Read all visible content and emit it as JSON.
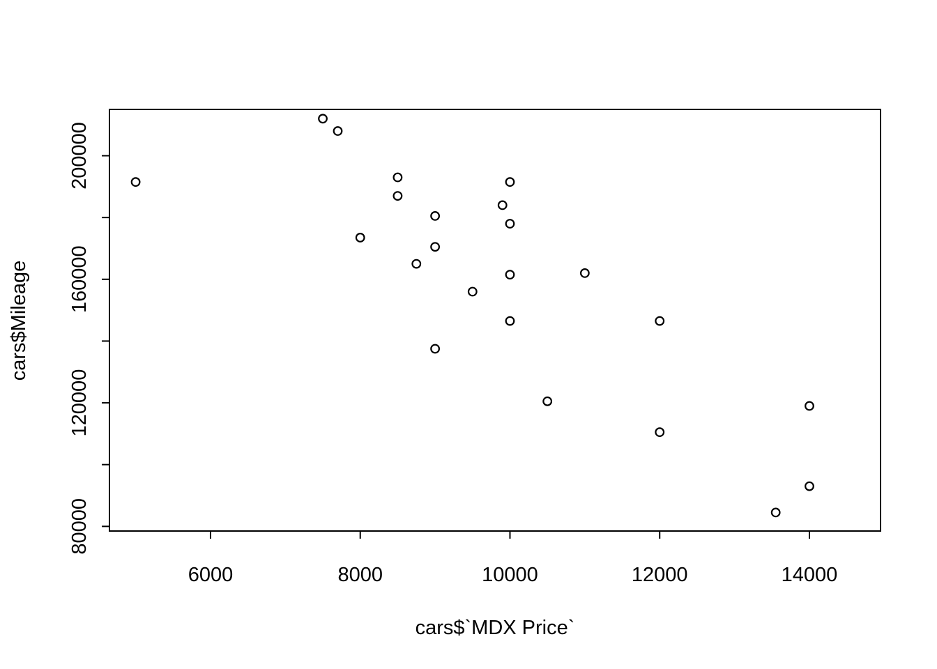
{
  "chart_data": {
    "type": "scatter",
    "title": "",
    "xlabel": "cars$`MDX Price`",
    "ylabel": "cars$Mileage",
    "xlim": [
      4650,
      14950
    ],
    "ylim": [
      78500,
      215000
    ],
    "x_ticks": [
      6000,
      8000,
      10000,
      12000,
      14000
    ],
    "x_tick_labels": [
      "6000",
      "8000",
      "10000",
      "12000",
      "14000"
    ],
    "y_ticks": [
      80000,
      100000,
      120000,
      140000,
      160000,
      180000,
      200000
    ],
    "y_tick_labels": [
      "80000",
      "",
      "120000",
      "",
      "160000",
      "",
      "200000"
    ],
    "grid": false,
    "marker": "open-circle",
    "points": [
      {
        "x": 5000,
        "y": 191500
      },
      {
        "x": 7500,
        "y": 212000
      },
      {
        "x": 7700,
        "y": 208000
      },
      {
        "x": 8000,
        "y": 173500
      },
      {
        "x": 8500,
        "y": 193000
      },
      {
        "x": 8500,
        "y": 187000
      },
      {
        "x": 8750,
        "y": 165000
      },
      {
        "x": 9000,
        "y": 180500
      },
      {
        "x": 9000,
        "y": 170500
      },
      {
        "x": 9000,
        "y": 137500
      },
      {
        "x": 9500,
        "y": 156000
      },
      {
        "x": 9900,
        "y": 184000
      },
      {
        "x": 10000,
        "y": 191500
      },
      {
        "x": 10000,
        "y": 178000
      },
      {
        "x": 10000,
        "y": 161500
      },
      {
        "x": 10000,
        "y": 146500
      },
      {
        "x": 10500,
        "y": 120500
      },
      {
        "x": 11000,
        "y": 162000
      },
      {
        "x": 12000,
        "y": 146500
      },
      {
        "x": 12000,
        "y": 110500
      },
      {
        "x": 13550,
        "y": 84500
      },
      {
        "x": 14000,
        "y": 119000
      },
      {
        "x": 14000,
        "y": 93000
      }
    ]
  }
}
